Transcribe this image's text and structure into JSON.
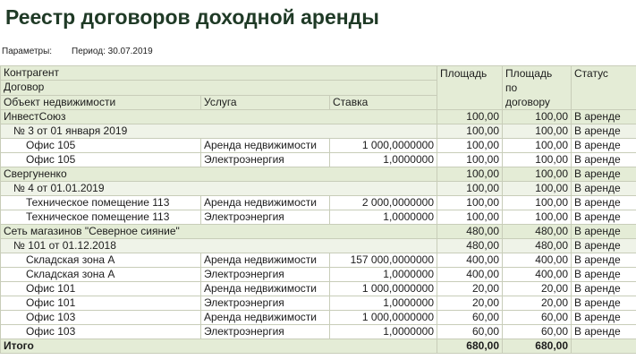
{
  "title": "Реестр договоров доходной аренды",
  "params": {
    "label": "Параметры:",
    "value": "Период: 30.07.2019"
  },
  "headers": {
    "kontragent": "Контрагент",
    "dogovor": "Договор",
    "object": "Объект недвижимости",
    "usluga": "Услуга",
    "stavka": "Ставка",
    "ploshad": "Площадь",
    "ploshad_dog_1": "Площадь",
    "ploshad_dog_2": "по",
    "ploshad_dog_3": "договору",
    "status": "Статус"
  },
  "rows": [
    {
      "level": 0,
      "name": "ИнвестСоюз",
      "service": "",
      "rate": "",
      "area": "100,00",
      "area_contract": "100,00",
      "status": "В аренде"
    },
    {
      "level": 1,
      "name": "№ 3 от 01 января 2019",
      "service": "",
      "rate": "",
      "area": "100,00",
      "area_contract": "100,00",
      "status": "В аренде"
    },
    {
      "level": 2,
      "name": "Офис 105",
      "service": "Аренда недвижимости",
      "rate": "1 000,0000000",
      "area": "100,00",
      "area_contract": "100,00",
      "status": "В аренде"
    },
    {
      "level": 2,
      "name": "Офис 105",
      "service": "Электроэнергия",
      "rate": "1,0000000",
      "area": "100,00",
      "area_contract": "100,00",
      "status": "В аренде"
    },
    {
      "level": 0,
      "name": "Свергуненко",
      "service": "",
      "rate": "",
      "area": "100,00",
      "area_contract": "100,00",
      "status": "В аренде"
    },
    {
      "level": 1,
      "name": "№ 4 от 01.01.2019",
      "service": "",
      "rate": "",
      "area": "100,00",
      "area_contract": "100,00",
      "status": "В аренде"
    },
    {
      "level": 2,
      "name": "Техническое помещение 113",
      "service": "Аренда недвижимости",
      "rate": "2 000,0000000",
      "area": "100,00",
      "area_contract": "100,00",
      "status": "В аренде"
    },
    {
      "level": 2,
      "name": "Техническое помещение 113",
      "service": "Электроэнергия",
      "rate": "1,0000000",
      "area": "100,00",
      "area_contract": "100,00",
      "status": "В аренде"
    },
    {
      "level": 0,
      "name": "Сеть магазинов \"Северное сияние\"",
      "service": "",
      "rate": "",
      "area": "480,00",
      "area_contract": "480,00",
      "status": "В аренде"
    },
    {
      "level": 1,
      "name": "№ 101 от 01.12.2018",
      "service": "",
      "rate": "",
      "area": "480,00",
      "area_contract": "480,00",
      "status": "В аренде"
    },
    {
      "level": 2,
      "name": "Складская зона А",
      "service": "Аренда недвижимости",
      "rate": "157 000,0000000",
      "area": "400,00",
      "area_contract": "400,00",
      "status": "В аренде"
    },
    {
      "level": 2,
      "name": "Складская зона А",
      "service": "Электроэнергия",
      "rate": "1,0000000",
      "area": "400,00",
      "area_contract": "400,00",
      "status": "В аренде"
    },
    {
      "level": 2,
      "name": "Офис 101",
      "service": "Аренда недвижимости",
      "rate": "1 000,0000000",
      "area": "20,00",
      "area_contract": "20,00",
      "status": "В аренде"
    },
    {
      "level": 2,
      "name": "Офис 101",
      "service": "Электроэнергия",
      "rate": "1,0000000",
      "area": "20,00",
      "area_contract": "20,00",
      "status": "В аренде"
    },
    {
      "level": 2,
      "name": "Офис 103",
      "service": "Аренда недвижимости",
      "rate": "1 000,0000000",
      "area": "60,00",
      "area_contract": "60,00",
      "status": "В аренде"
    },
    {
      "level": 2,
      "name": "Офис 103",
      "service": "Электроэнергия",
      "rate": "1,0000000",
      "area": "60,00",
      "area_contract": "60,00",
      "status": "В аренде"
    }
  ],
  "total": {
    "label": "Итого",
    "area": "680,00",
    "area_contract": "680,00"
  },
  "colors": {
    "header_bg": "#e4ecd6",
    "group_bg": "#e4ecd6",
    "subgroup_bg": "#eff3e8",
    "title": "#1f3a26",
    "border": "#c8cdb9"
  }
}
